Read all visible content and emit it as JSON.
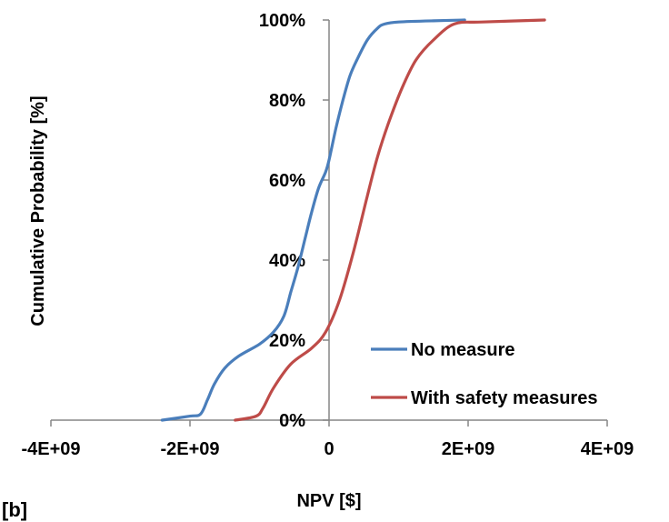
{
  "chart_data": {
    "type": "line",
    "xlabel": "NPV [$]",
    "ylabel": "Cumulative Probability  [%]",
    "xlim": [
      -4000000000,
      4000000000
    ],
    "ylim": [
      0,
      100
    ],
    "x_ticks": [
      -4000000000,
      -2000000000,
      0,
      2000000000,
      4000000000
    ],
    "x_tick_labels": [
      "-4E+09",
      "-2E+09",
      "0",
      "2E+09",
      "4E+09"
    ],
    "y_ticks": [
      0,
      20,
      40,
      60,
      80,
      100
    ],
    "y_tick_labels": [
      "0%",
      "20%",
      "40%",
      "60%",
      "80%",
      "100%"
    ],
    "grid": false,
    "legend_position": "bottom-right",
    "series": [
      {
        "name": "No measure",
        "color": "#4a7ebb",
        "x": [
          -2400000000,
          -2000000000,
          -1850000000,
          -1750000000,
          -1650000000,
          -1500000000,
          -1300000000,
          -1000000000,
          -800000000,
          -650000000,
          -550000000,
          -450000000,
          -350000000,
          -250000000,
          -150000000,
          -50000000,
          0,
          100000000,
          200000000,
          300000000,
          400000000,
          550000000,
          700000000,
          800000000,
          1000000000,
          1500000000,
          1950000000
        ],
        "y": [
          0,
          1,
          1.5,
          5,
          9,
          13,
          16,
          19,
          22,
          26,
          32,
          38,
          45,
          52,
          58,
          62,
          65,
          73,
          80,
          86,
          90,
          95,
          98,
          99,
          99.5,
          99.8,
          100
        ]
      },
      {
        "name": "With safety measures",
        "color": "#be4b48",
        "x": [
          -1350000000,
          -1050000000,
          -950000000,
          -800000000,
          -550000000,
          -250000000,
          -50000000,
          150000000,
          350000000,
          550000000,
          700000000,
          850000000,
          1050000000,
          1250000000,
          1500000000,
          1800000000,
          2200000000,
          3100000000
        ],
        "y": [
          0,
          1,
          3,
          8,
          14,
          18,
          22,
          30,
          42,
          56,
          66,
          74,
          83,
          90,
          95,
          99,
          99.5,
          100
        ]
      }
    ]
  }
}
